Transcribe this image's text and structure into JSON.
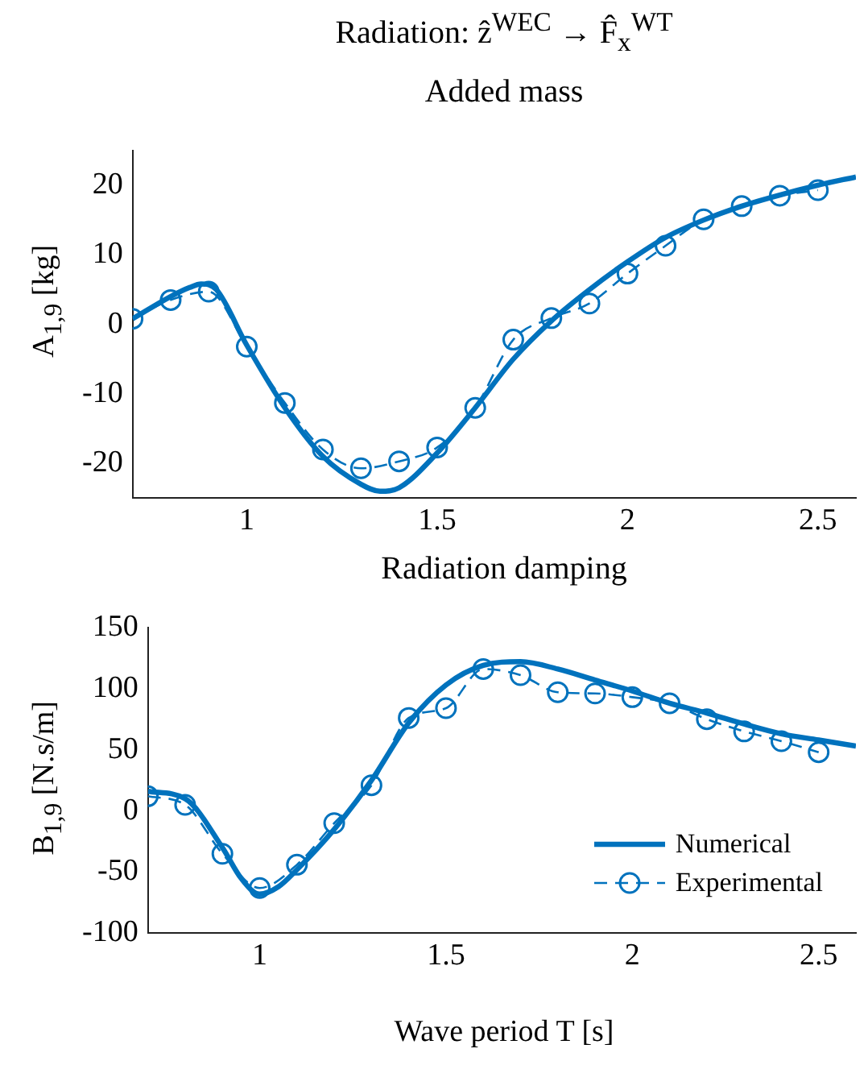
{
  "chart_data": [
    {
      "type": "line",
      "title": "Radiation: ẑ$^{WEC}$ → F̂$_{x}$$^{WT}$",
      "subtitle": "Added mass",
      "ylabel": "A$_{1,9}$ [kg]",
      "xlim": [
        0.7,
        2.6
      ],
      "xticks": [
        1,
        1.5,
        2,
        2.5
      ],
      "ylim": [
        -25,
        25
      ],
      "yticks": [
        -20,
        -10,
        0,
        10,
        20
      ],
      "grid": false,
      "legend": false,
      "series": [
        {
          "color": "#0072bd",
          "marker": "none",
          "line_style": "solid",
          "x": [
            0.7,
            0.8,
            0.85,
            0.88,
            0.92,
            1.0,
            1.1,
            1.2,
            1.3,
            1.35,
            1.4,
            1.5,
            1.6,
            1.7,
            1.8,
            1.9,
            2.0,
            2.1,
            2.2,
            2.3,
            2.4,
            2.5,
            2.6
          ],
          "values": [
            0.8,
            4,
            5.3,
            5.8,
            5,
            -3,
            -12,
            -19,
            -23,
            -24,
            -23.5,
            -18.5,
            -12,
            -5,
            0.5,
            5,
            9,
            12.5,
            15,
            17,
            18.6,
            20,
            21.2
          ]
        },
        {
          "color": "#0072bd",
          "marker": "circle",
          "line_style": "dashed",
          "x": [
            0.7,
            0.8,
            0.9,
            1.0,
            1.1,
            1.2,
            1.3,
            1.4,
            1.5,
            1.6,
            1.7,
            1.8,
            1.9,
            2.0,
            2.1,
            2.2,
            2.3,
            2.4,
            2.5
          ],
          "values": [
            0.8,
            3.5,
            4.7,
            -3.2,
            -11.3,
            -18,
            -20.7,
            -19.7,
            -17.7,
            -12,
            -2.2,
            0.9,
            3,
            7.3,
            11.3,
            15.1,
            17,
            18.5,
            19.3
          ]
        }
      ]
    },
    {
      "type": "line",
      "subtitle": "Radiation damping",
      "ylabel": "B$_{1,9}$ [N.s/m]",
      "xlabel": "Wave period T [s]",
      "xlim": [
        0.7,
        2.6
      ],
      "xticks": [
        1,
        1.5,
        2,
        2.5
      ],
      "ylim": [
        -100,
        150
      ],
      "yticks": [
        -100,
        -50,
        0,
        50,
        100,
        150
      ],
      "grid": false,
      "legend": "bottom right",
      "series": [
        {
          "name": "Numerical",
          "color": "#0072bd",
          "marker": "none",
          "line_style": "solid",
          "x": [
            0.7,
            0.8,
            0.9,
            0.95,
            1.0,
            1.05,
            1.1,
            1.2,
            1.3,
            1.4,
            1.5,
            1.6,
            1.7,
            1.8,
            1.9,
            2.0,
            2.1,
            2.2,
            2.3,
            2.4,
            2.5,
            2.6
          ],
          "values": [
            16,
            10,
            -30,
            -55,
            -68,
            -62,
            -48,
            -15,
            25,
            72,
            103,
            119,
            122,
            116,
            107,
            98,
            88,
            80,
            71,
            63,
            58,
            53
          ]
        },
        {
          "name": "Experimental",
          "color": "#0072bd",
          "marker": "circle",
          "line_style": "dashed",
          "x": [
            0.7,
            0.8,
            0.9,
            1.0,
            1.1,
            1.2,
            1.3,
            1.4,
            1.5,
            1.6,
            1.7,
            1.8,
            1.9,
            2.0,
            2.1,
            2.2,
            2.3,
            2.4,
            2.5
          ],
          "values": [
            12,
            5,
            -35,
            -63,
            -44,
            -10,
            21,
            76,
            84,
            116,
            111,
            97,
            96,
            93,
            88,
            75,
            65,
            57,
            48
          ]
        }
      ]
    }
  ]
}
